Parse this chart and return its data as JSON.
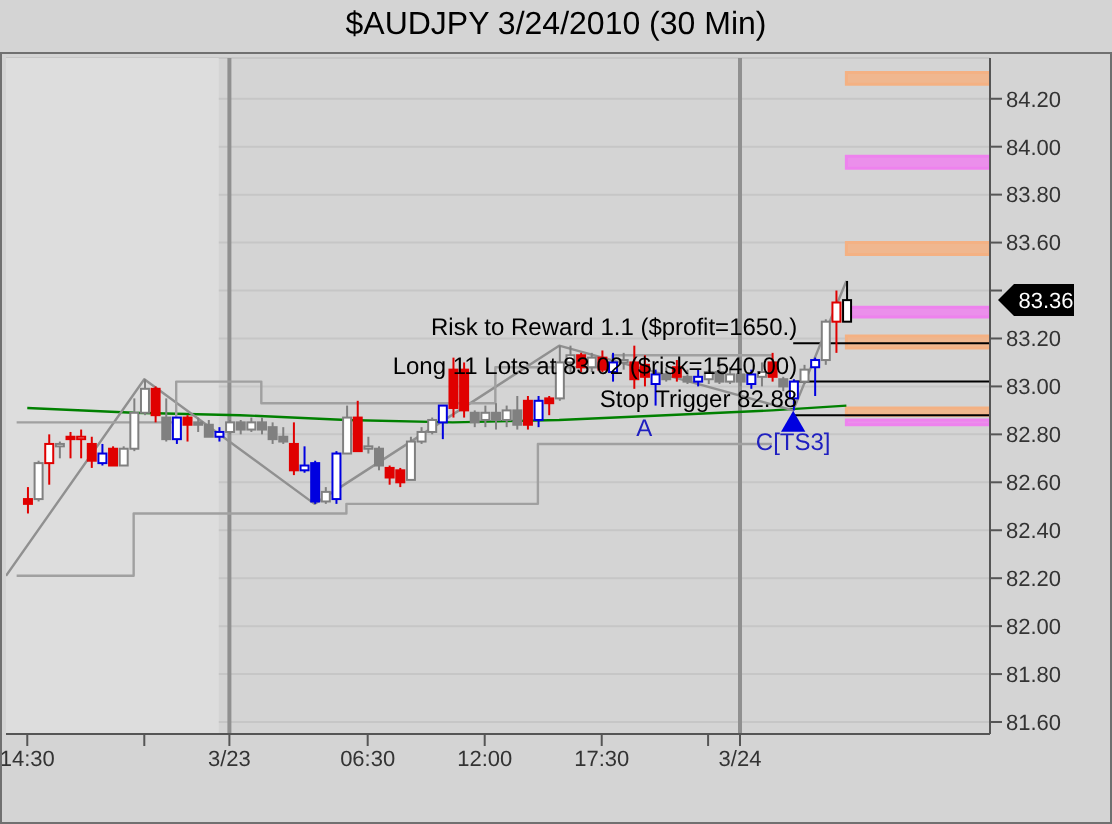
{
  "chart_data": {
    "type": "candlestick",
    "title": "$AUDJPY  3/24/2010 (30 Min)",
    "x": [
      "2010-03-22T14:30",
      "2010-03-22T15:00",
      "2010-03-22T15:30",
      "2010-03-22T16:00",
      "2010-03-22T16:30",
      "2010-03-22T17:00",
      "2010-03-22T17:30",
      "2010-03-22T18:00",
      "2010-03-22T18:30",
      "2010-03-22T19:00",
      "2010-03-22T19:30",
      "2010-03-22T20:00",
      "2010-03-22T20:30",
      "2010-03-22T21:00",
      "2010-03-22T21:30",
      "2010-03-22T22:00",
      "2010-03-22T22:30",
      "2010-03-22T23:00",
      "2010-03-22T23:30",
      "2010-03-23T00:00",
      "2010-03-23T00:30",
      "2010-03-23T01:00",
      "2010-03-23T01:30",
      "2010-03-23T02:00",
      "2010-03-23T02:30",
      "2010-03-23T03:00",
      "2010-03-23T03:30",
      "2010-03-23T04:00",
      "2010-03-23T04:30",
      "2010-03-23T05:00",
      "2010-03-23T05:30",
      "2010-03-23T06:00",
      "2010-03-23T06:30",
      "2010-03-23T07:00",
      "2010-03-23T07:30",
      "2010-03-23T08:00",
      "2010-03-23T08:30",
      "2010-03-23T09:00",
      "2010-03-23T09:30",
      "2010-03-23T10:00",
      "2010-03-23T10:30",
      "2010-03-23T11:00",
      "2010-03-23T11:30",
      "2010-03-23T12:00",
      "2010-03-23T12:30",
      "2010-03-23T13:00",
      "2010-03-23T13:30",
      "2010-03-23T14:00",
      "2010-03-23T14:30",
      "2010-03-23T15:00",
      "2010-03-23T15:30",
      "2010-03-23T16:00",
      "2010-03-23T16:30",
      "2010-03-23T17:00",
      "2010-03-23T17:30",
      "2010-03-23T18:00",
      "2010-03-23T18:30",
      "2010-03-23T19:00",
      "2010-03-23T19:30",
      "2010-03-23T20:00",
      "2010-03-23T20:30",
      "2010-03-23T21:00",
      "2010-03-23T21:30",
      "2010-03-23T22:00",
      "2010-03-23T22:30",
      "2010-03-23T23:00",
      "2010-03-23T23:30",
      "2010-03-24T00:00",
      "2010-03-24T00:30",
      "2010-03-24T01:00",
      "2010-03-24T01:30",
      "2010-03-24T02:00",
      "2010-03-24T02:30",
      "2010-03-24T03:00",
      "2010-03-24T03:30",
      "2010-03-24T04:00",
      "2010-03-24T04:30",
      "2010-03-24T05:00"
    ],
    "ohlc": [
      [
        82.53,
        82.58,
        82.47,
        82.51
      ],
      [
        82.53,
        82.69,
        82.52,
        82.68
      ],
      [
        82.68,
        82.8,
        82.59,
        82.76
      ],
      [
        82.75,
        82.77,
        82.7,
        82.76
      ],
      [
        82.79,
        82.81,
        82.7,
        82.78
      ],
      [
        82.78,
        82.82,
        82.7,
        82.79
      ],
      [
        82.76,
        82.79,
        82.66,
        82.69
      ],
      [
        82.68,
        82.76,
        82.67,
        82.72
      ],
      [
        82.74,
        82.75,
        82.67,
        82.67
      ],
      [
        82.67,
        82.75,
        82.67,
        82.74
      ],
      [
        82.74,
        82.95,
        82.73,
        82.89
      ],
      [
        82.89,
        83.03,
        82.88,
        82.99
      ],
      [
        82.99,
        83.0,
        82.85,
        82.88
      ],
      [
        82.87,
        82.95,
        82.77,
        82.78
      ],
      [
        82.78,
        82.87,
        82.76,
        82.87
      ],
      [
        82.87,
        82.88,
        82.77,
        82.84
      ],
      [
        82.85,
        82.87,
        82.81,
        82.84
      ],
      [
        82.84,
        82.86,
        82.79,
        82.79
      ],
      [
        82.79,
        82.83,
        82.77,
        82.81
      ],
      [
        82.81,
        82.86,
        82.8,
        82.85
      ],
      [
        82.85,
        82.86,
        82.8,
        82.82
      ],
      [
        82.82,
        82.87,
        82.81,
        82.85
      ],
      [
        82.85,
        82.87,
        82.8,
        82.82
      ],
      [
        82.83,
        82.85,
        82.76,
        82.78
      ],
      [
        82.79,
        82.83,
        82.76,
        82.77
      ],
      [
        82.76,
        82.85,
        82.63,
        82.65
      ],
      [
        82.65,
        82.75,
        82.64,
        82.67
      ],
      [
        82.68,
        82.69,
        82.51,
        82.52
      ],
      [
        82.52,
        82.58,
        82.51,
        82.56
      ],
      [
        82.53,
        82.73,
        82.51,
        82.72
      ],
      [
        82.72,
        82.92,
        82.72,
        82.87
      ],
      [
        82.87,
        82.94,
        82.73,
        82.73
      ],
      [
        82.74,
        82.79,
        82.72,
        82.75
      ],
      [
        82.74,
        82.75,
        82.65,
        82.67
      ],
      [
        82.66,
        82.67,
        82.59,
        82.62
      ],
      [
        82.65,
        82.66,
        82.58,
        82.6
      ],
      [
        82.61,
        82.79,
        82.61,
        82.77
      ],
      [
        82.77,
        82.83,
        82.76,
        82.81
      ],
      [
        82.81,
        82.87,
        82.8,
        82.86
      ],
      [
        82.85,
        82.92,
        82.78,
        82.92
      ],
      [
        83.07,
        83.12,
        82.87,
        82.91
      ],
      [
        83.07,
        83.1,
        82.87,
        82.9
      ],
      [
        82.89,
        82.9,
        82.83,
        82.85
      ],
      [
        82.86,
        82.92,
        82.83,
        82.89
      ],
      [
        82.89,
        82.93,
        82.82,
        82.86
      ],
      [
        82.86,
        82.92,
        82.83,
        82.9
      ],
      [
        82.9,
        82.96,
        82.82,
        82.84
      ],
      [
        82.94,
        82.96,
        82.82,
        82.84
      ],
      [
        82.86,
        82.96,
        82.83,
        82.94
      ],
      [
        82.95,
        82.96,
        82.88,
        82.93
      ],
      [
        82.95,
        83.17,
        82.94,
        83.1
      ],
      [
        83.1,
        83.17,
        83.06,
        83.13
      ],
      [
        83.13,
        83.14,
        83.06,
        83.08
      ],
      [
        83.08,
        83.14,
        83.06,
        83.12
      ],
      [
        83.12,
        83.15,
        83.06,
        83.07
      ],
      [
        83.06,
        83.14,
        83.02,
        83.1
      ],
      [
        83.1,
        83.14,
        83.07,
        83.11
      ],
      [
        83.1,
        83.17,
        82.99,
        83.03
      ],
      [
        83.09,
        83.13,
        83.0,
        83.04
      ],
      [
        83.01,
        83.07,
        82.92,
        83.05
      ],
      [
        83.05,
        83.08,
        83.02,
        83.03
      ],
      [
        83.08,
        83.11,
        83.02,
        83.04
      ],
      [
        83.04,
        83.07,
        83.01,
        83.02
      ],
      [
        83.02,
        83.07,
        83.0,
        83.04
      ],
      [
        83.03,
        83.07,
        83.01,
        83.06
      ],
      [
        83.06,
        83.11,
        83.01,
        83.02
      ],
      [
        83.02,
        83.08,
        83.01,
        83.05
      ],
      [
        83.05,
        83.11,
        83.0,
        83.02
      ],
      [
        83.01,
        83.07,
        82.99,
        83.05
      ],
      [
        83.04,
        83.1,
        83.0,
        83.06
      ],
      [
        83.1,
        83.14,
        83.02,
        83.04
      ],
      [
        83.03,
        83.04,
        82.98,
        83.0
      ],
      [
        82.95,
        83.03,
        82.9,
        83.02
      ],
      [
        83.02,
        83.09,
        83.01,
        83.07
      ],
      [
        83.08,
        83.12,
        82.96,
        83.11
      ],
      [
        83.11,
        83.28,
        83.09,
        83.27
      ],
      [
        83.27,
        83.4,
        83.14,
        83.35
      ],
      [
        83.27,
        83.44,
        83.27,
        83.36
      ]
    ],
    "colors": [
      "#e00000",
      "#808080",
      "#e00000",
      "#808080",
      "#e00000",
      "#e00000",
      "#e00000",
      "#0000e0",
      "#e00000",
      "#808080",
      "#808080",
      "#808080",
      "#e00000",
      "#808080",
      "#0000e0",
      "#e00000",
      "#808080",
      "#808080",
      "#0000e0",
      "#808080",
      "#808080",
      "#808080",
      "#808080",
      "#808080",
      "#808080",
      "#e00000",
      "#0000e0",
      "#0000e0",
      "#808080",
      "#0000e0",
      "#808080",
      "#e00000",
      "#808080",
      "#808080",
      "#e00000",
      "#e00000",
      "#808080",
      "#808080",
      "#808080",
      "#0000e0",
      "#e00000",
      "#e00000",
      "#808080",
      "#808080",
      "#808080",
      "#808080",
      "#808080",
      "#e00000",
      "#0000e0",
      "#e00000",
      "#808080",
      "#808080",
      "#e00000",
      "#808080",
      "#e00000",
      "#0000e0",
      "#808080",
      "#e00000",
      "#e00000",
      "#0000e0",
      "#808080",
      "#e00000",
      "#808080",
      "#0000e0",
      "#808080",
      "#808080",
      "#808080",
      "#808080",
      "#0000e0",
      "#808080",
      "#e00000",
      "#808080",
      "#0000e0",
      "#808080",
      "#0000e0",
      "#808080",
      "#e00000",
      "#ffffff"
    ],
    "series": [
      {
        "type": "line",
        "color": "#008000",
        "x": [
          "2010-03-22T14:30",
          "2010-03-22T19:30",
          "2010-03-23T00:30",
          "2010-03-23T05:30",
          "2010-03-23T10:30",
          "2010-03-23T15:30",
          "2010-03-23T20:30",
          "2010-03-24T01:30",
          "2010-03-24T05:00"
        ],
        "values": [
          82.91,
          82.89,
          82.88,
          82.86,
          82.85,
          82.86,
          82.88,
          82.9,
          82.92
        ]
      },
      {
        "type": "line",
        "color": "#909090",
        "x": [
          "2010-03-22T13:30",
          "2010-03-22T20:00",
          "2010-03-23T04:00",
          "2010-03-23T15:30",
          "2010-03-24T02:30",
          "2010-03-24T05:00"
        ],
        "values": [
          82.21,
          83.03,
          82.51,
          83.17,
          82.9,
          83.44
        ]
      },
      {
        "type": "step",
        "color": "#a0a0a0",
        "x": [
          "2010-03-22T14:00",
          "2010-03-22T21:30",
          "2010-03-23T01:30",
          "2010-03-23T12:30",
          "2010-03-23T18:00",
          "2010-03-24T01:30"
        ],
        "values": [
          82.85,
          83.02,
          82.93,
          83.08,
          83.13,
          83.13
        ]
      },
      {
        "type": "step",
        "color": "#a0a0a0",
        "x": [
          "2010-03-22T14:00",
          "2010-03-22T19:30",
          "2010-03-23T00:30",
          "2010-03-23T05:30",
          "2010-03-23T14:30",
          "2010-03-24T01:30"
        ],
        "values": [
          82.21,
          82.47,
          82.47,
          82.51,
          82.76,
          82.76
        ]
      },
      {
        "type": "scatter",
        "color": "#0000e0",
        "marker": "triangle",
        "x": [
          "2010-03-24T02:30"
        ],
        "values": [
          82.84
        ]
      }
    ],
    "xlim": [
      "2010-03-22T13:30",
      "2010-03-24T11:45"
    ],
    "xticks": [
      {
        "value": "2010-03-22T14:30",
        "label": "14:30"
      },
      {
        "value": "2010-03-22T20:00",
        "label": null
      },
      {
        "value": "2010-03-23T00:00",
        "label": "3/23"
      },
      {
        "value": "2010-03-23T06:30",
        "label": "06:30"
      },
      {
        "value": "2010-03-23T12:00",
        "label": "12:00"
      },
      {
        "value": "2010-03-23T17:30",
        "label": "17:30"
      },
      {
        "value": "2010-03-23T22:30",
        "label": null
      },
      {
        "value": "2010-03-24T00:00",
        "label": "3/24"
      }
    ],
    "ylim": [
      81.55,
      84.37
    ],
    "yticks": [
      {
        "value": 81.6,
        "label": "81.60"
      },
      {
        "value": 81.8,
        "label": "81.80"
      },
      {
        "value": 82.0,
        "label": "82.00"
      },
      {
        "value": 82.2,
        "label": "82.20"
      },
      {
        "value": 82.4,
        "label": "82.40"
      },
      {
        "value": 82.6,
        "label": "82.60"
      },
      {
        "value": 82.8,
        "label": "82.80"
      },
      {
        "value": 83.0,
        "label": "83.00"
      },
      {
        "value": 83.2,
        "label": "83.20"
      },
      {
        "value": 83.4,
        "label": null
      },
      {
        "value": 83.6,
        "label": "83.60"
      },
      {
        "value": 83.8,
        "label": "83.80"
      },
      {
        "value": 84.0,
        "label": "84.00"
      },
      {
        "value": 84.2,
        "label": "84.20"
      }
    ],
    "grid": "y",
    "ref_lines": [
      {
        "axis": "x",
        "value": "2010-03-23T00:00",
        "color": "#909090"
      },
      {
        "axis": "x",
        "value": "2010-03-24T00:00",
        "color": "#909090"
      },
      {
        "axis": "y",
        "value": 83.18,
        "color": "#000000"
      },
      {
        "axis": "y",
        "value": 83.02,
        "label": "Long 11 Lots at 83.02 ($risk=1540.00)",
        "color": "#000000"
      },
      {
        "axis": "y",
        "value": 82.88,
        "label": "Stop Trigger 82.88",
        "color": "#000000"
      }
    ],
    "bands": [
      {
        "axis": "x",
        "from": "2010-03-22T13:30",
        "to": "2010-03-22T23:30",
        "color": "#dddddd"
      },
      {
        "axis": "y",
        "from": 84.26,
        "to": 84.31,
        "color": "#f4b183"
      },
      {
        "axis": "y",
        "from": 83.91,
        "to": 83.96,
        "color": "#ee82ee"
      },
      {
        "axis": "y",
        "from": 83.55,
        "to": 83.6,
        "color": "#f4b183"
      },
      {
        "axis": "y",
        "from": 83.29,
        "to": 83.33,
        "color": "#ee82ee"
      },
      {
        "axis": "y",
        "from": 83.16,
        "to": 83.21,
        "color": "#f4b183"
      },
      {
        "axis": "y",
        "from": 82.88,
        "to": 82.91,
        "color": "#f4b183"
      },
      {
        "axis": "y",
        "from": 82.84,
        "to": 82.86,
        "color": "#ee82ee"
      }
    ],
    "annotations": [
      {
        "text": "C[TS3]",
        "x": "2010-03-24T02:30",
        "y": 82.8
      },
      {
        "text": "A",
        "x": "2010-03-23T19:30",
        "y": 82.86
      },
      {
        "text": "Risk to Reward 1.1 ($profit=1650.)",
        "y": 83.18
      },
      "83.36"
    ]
  }
}
